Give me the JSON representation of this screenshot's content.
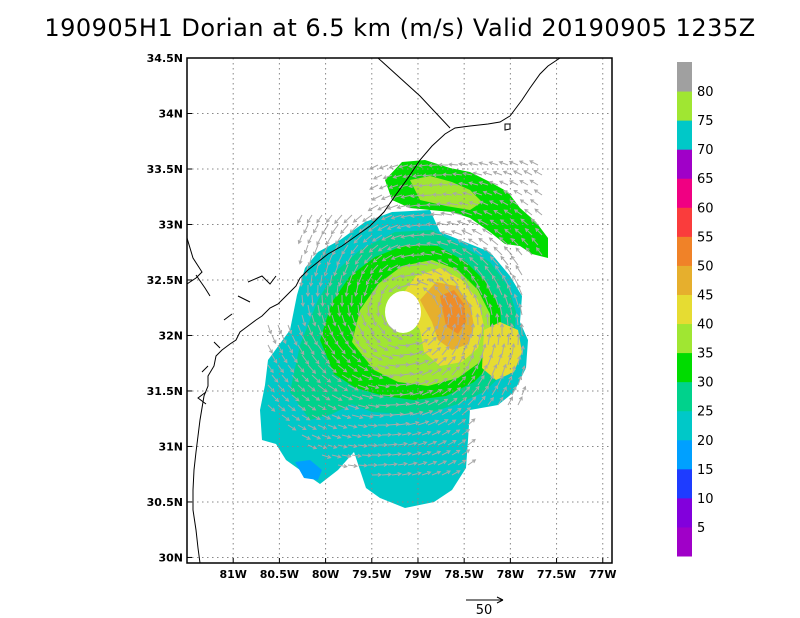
{
  "title": "190905H1 Dorian at 6.5 km (m/s) Valid 20190905 1235Z",
  "map": {
    "lon_range": [
      -81.5,
      -76.9
    ],
    "lat_range": [
      29.95,
      34.5
    ],
    "x_ticks": [
      {
        "lon": -81.0,
        "label": "81W"
      },
      {
        "lon": -80.5,
        "label": "80.5W"
      },
      {
        "lon": -80.0,
        "label": "80W"
      },
      {
        "lon": -79.5,
        "label": "79.5W"
      },
      {
        "lon": -79.0,
        "label": "79W"
      },
      {
        "lon": -78.5,
        "label": "78.5W"
      },
      {
        "lon": -78.0,
        "label": "78W"
      },
      {
        "lon": -77.5,
        "label": "77.5W"
      },
      {
        "lon": -77.0,
        "label": "77W"
      }
    ],
    "y_ticks": [
      {
        "lat": 30.0,
        "label": "30N"
      },
      {
        "lat": 30.5,
        "label": "30.5N"
      },
      {
        "lat": 31.0,
        "label": "31N"
      },
      {
        "lat": 31.5,
        "label": "31.5N"
      },
      {
        "lat": 32.0,
        "label": "32N"
      },
      {
        "lat": 32.5,
        "label": "32.5N"
      },
      {
        "lat": 33.0,
        "label": "33N"
      },
      {
        "lat": 33.5,
        "label": "33.5N"
      },
      {
        "lat": 34.0,
        "label": "34N"
      },
      {
        "lat": 34.5,
        "label": "34.5N"
      }
    ],
    "storm_center": {
      "lon": -79.15,
      "lat": 32.2
    },
    "grid_lines": "dotted"
  },
  "colorbar": {
    "levels": [
      {
        "min": 0,
        "max": 5,
        "color": "#a000c8"
      },
      {
        "min": 5,
        "max": 10,
        "color": "#8200dc"
      },
      {
        "min": 10,
        "max": 15,
        "color": "#1e3cff"
      },
      {
        "min": 15,
        "max": 20,
        "color": "#00a0ff"
      },
      {
        "min": 20,
        "max": 25,
        "color": "#00c8c8"
      },
      {
        "min": 25,
        "max": 30,
        "color": "#00d28c"
      },
      {
        "min": 30,
        "max": 35,
        "color": "#00dc00"
      },
      {
        "min": 35,
        "max": 40,
        "color": "#a0e632"
      },
      {
        "min": 40,
        "max": 45,
        "color": "#e6dc32"
      },
      {
        "min": 45,
        "max": 50,
        "color": "#e6af2d"
      },
      {
        "min": 50,
        "max": 55,
        "color": "#f08228"
      },
      {
        "min": 55,
        "max": 60,
        "color": "#fa3c3c"
      },
      {
        "min": 60,
        "max": 65,
        "color": "#f00082"
      },
      {
        "min": 65,
        "max": 70,
        "color": "#a000c8"
      },
      {
        "min": 70,
        "max": 75,
        "color": "#00c8c8"
      },
      {
        "min": 75,
        "max": 80,
        "color": "#a0e632"
      },
      {
        "min": 80,
        "max": 85,
        "color": "#a0a0a0"
      }
    ],
    "labels": [
      "5",
      "10",
      "15",
      "20",
      "25",
      "30",
      "35",
      "40",
      "45",
      "50",
      "55",
      "60",
      "65",
      "70",
      "75",
      "80"
    ]
  },
  "vector_scale": {
    "label": "50",
    "units": "m/s"
  },
  "colors": {
    "arrow": "#a8a8a8",
    "coast": "#000000",
    "grid": "#888888"
  }
}
